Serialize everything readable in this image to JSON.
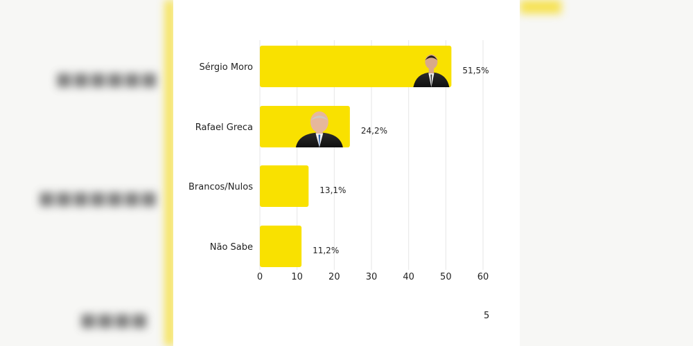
{
  "chart_data": {
    "type": "bar",
    "orientation": "horizontal",
    "title": "",
    "xlabel": "",
    "ylabel": "",
    "categories": [
      "Sérgio Moro",
      "Rafael Greca",
      "Brancos/Nulos",
      "Não Sabe"
    ],
    "values": [
      51.5,
      24.2,
      13.1,
      11.2
    ],
    "value_labels": [
      "51,5%",
      "24,2%",
      "13,1%",
      "11,2%"
    ],
    "xlim": [
      0,
      60
    ],
    "x_ticks": [
      0,
      10,
      20,
      30,
      40,
      50,
      60
    ],
    "grid": "vertical",
    "bar_color": "#f9e100",
    "grid_color": "#e6e6e6"
  },
  "footer": {
    "page_number": "5"
  }
}
